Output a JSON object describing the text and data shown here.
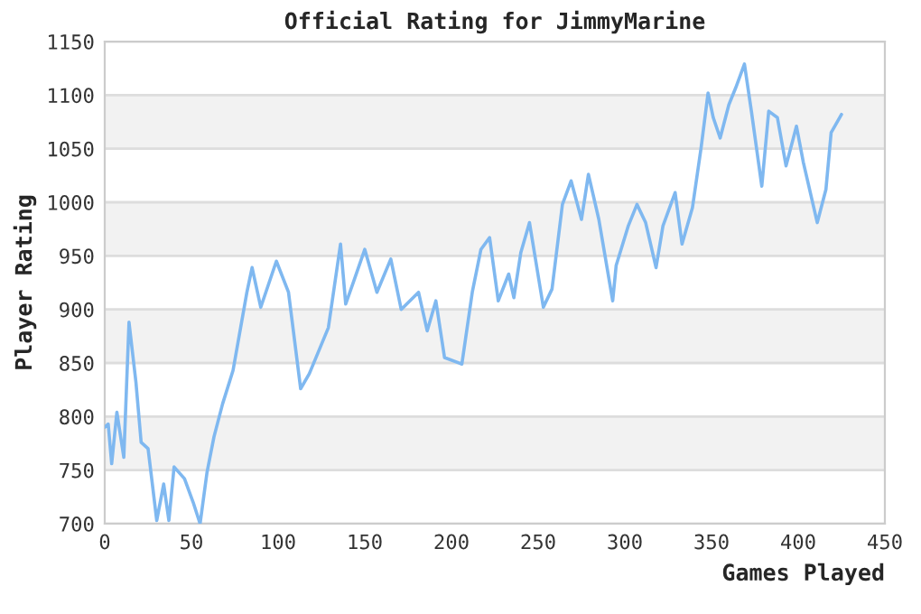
{
  "chart_data": {
    "type": "line",
    "title": "Official Rating for JimmyMarine",
    "xlabel": "Games Played",
    "ylabel": "Player Rating",
    "xlim": [
      0,
      450
    ],
    "xticks": [
      0,
      50,
      100,
      150,
      200,
      250,
      300,
      350,
      400,
      450
    ],
    "ylim": [
      700,
      1150
    ],
    "yticks": [
      700,
      750,
      800,
      850,
      900,
      950,
      1000,
      1050,
      1100,
      1150
    ],
    "grid": "y",
    "marker": "none",
    "line_style": "solid",
    "series": [
      {
        "color": "#7fb8f0",
        "x": [
          0,
          2,
          4,
          7,
          11,
          14,
          18,
          21,
          25,
          30,
          34,
          37,
          40,
          46,
          51,
          55,
          59,
          63,
          68,
          74,
          82,
          85,
          90,
          99,
          106,
          113,
          118,
          129,
          136,
          139,
          144,
          150,
          157,
          165,
          171,
          181,
          186,
          191,
          196,
          206,
          212,
          217,
          222,
          227,
          233,
          236,
          240,
          245,
          253,
          258,
          264,
          269,
          275,
          279,
          285,
          293,
          295,
          302,
          307,
          312,
          318,
          322,
          329,
          333,
          339,
          344,
          348,
          351,
          355,
          360,
          364,
          369,
          373,
          379,
          383,
          388,
          393,
          399,
          403,
          411,
          416,
          419,
          425
        ],
        "values": [
          790,
          793,
          756,
          804,
          762,
          888,
          832,
          776,
          770,
          703,
          737,
          703,
          753,
          742,
          720,
          700,
          748,
          781,
          812,
          843,
          916,
          939,
          902,
          945,
          916,
          826,
          840,
          883,
          961,
          905,
          928,
          956,
          916,
          947,
          900,
          916,
          880,
          908,
          855,
          849,
          916,
          956,
          967,
          908,
          933,
          911,
          953,
          981,
          902,
          919,
          998,
          1020,
          984,
          1026,
          984,
          908,
          941,
          978,
          998,
          981,
          939,
          978,
          1009,
          961,
          995,
          1051,
          1102,
          1079,
          1060,
          1091,
          1107,
          1129,
          1085,
          1015,
          1085,
          1079,
          1034,
          1071,
          1037,
          981,
          1012,
          1065,
          1082
        ]
      }
    ]
  }
}
